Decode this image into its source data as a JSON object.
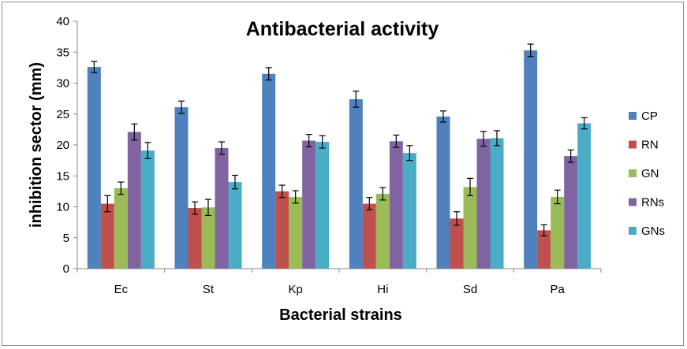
{
  "chart_data": {
    "type": "bar",
    "title": "Antibacterial activity",
    "xlabel": "Bacterial strains",
    "ylabel": "inhibition sector (mm)",
    "ylim": [
      0,
      40
    ],
    "yticks": [
      0,
      5,
      10,
      15,
      20,
      25,
      30,
      35,
      40
    ],
    "grid": false,
    "legend_position": "right",
    "categories": [
      "Ec",
      "St",
      "Kp",
      "Hi",
      "Sd",
      "Pa"
    ],
    "series": [
      {
        "name": "CP",
        "color": "#4F81BD",
        "values": [
          32.6,
          26.1,
          31.5,
          27.4,
          24.6,
          35.3
        ],
        "errors": [
          0.9,
          1.0,
          1.0,
          1.3,
          0.9,
          1.0
        ]
      },
      {
        "name": "RN",
        "color": "#C0504D",
        "values": [
          10.5,
          9.8,
          12.5,
          10.5,
          8.1,
          6.2
        ],
        "errors": [
          1.3,
          1.0,
          1.0,
          1.0,
          1.1,
          0.9
        ]
      },
      {
        "name": "GN",
        "color": "#9BBB59",
        "values": [
          13.0,
          9.9,
          11.6,
          12.1,
          13.2,
          11.6
        ],
        "errors": [
          1.0,
          1.3,
          1.0,
          1.0,
          1.4,
          1.1
        ]
      },
      {
        "name": "RNs",
        "color": "#8064A2",
        "values": [
          22.1,
          19.5,
          20.7,
          20.6,
          21.0,
          18.2
        ],
        "errors": [
          1.3,
          1.0,
          1.0,
          1.0,
          1.2,
          1.0
        ]
      },
      {
        "name": "GNs",
        "color": "#4BACC6",
        "values": [
          19.1,
          14.0,
          20.5,
          18.7,
          21.1,
          23.5
        ],
        "errors": [
          1.3,
          1.1,
          1.0,
          1.2,
          1.2,
          0.9
        ]
      }
    ]
  }
}
